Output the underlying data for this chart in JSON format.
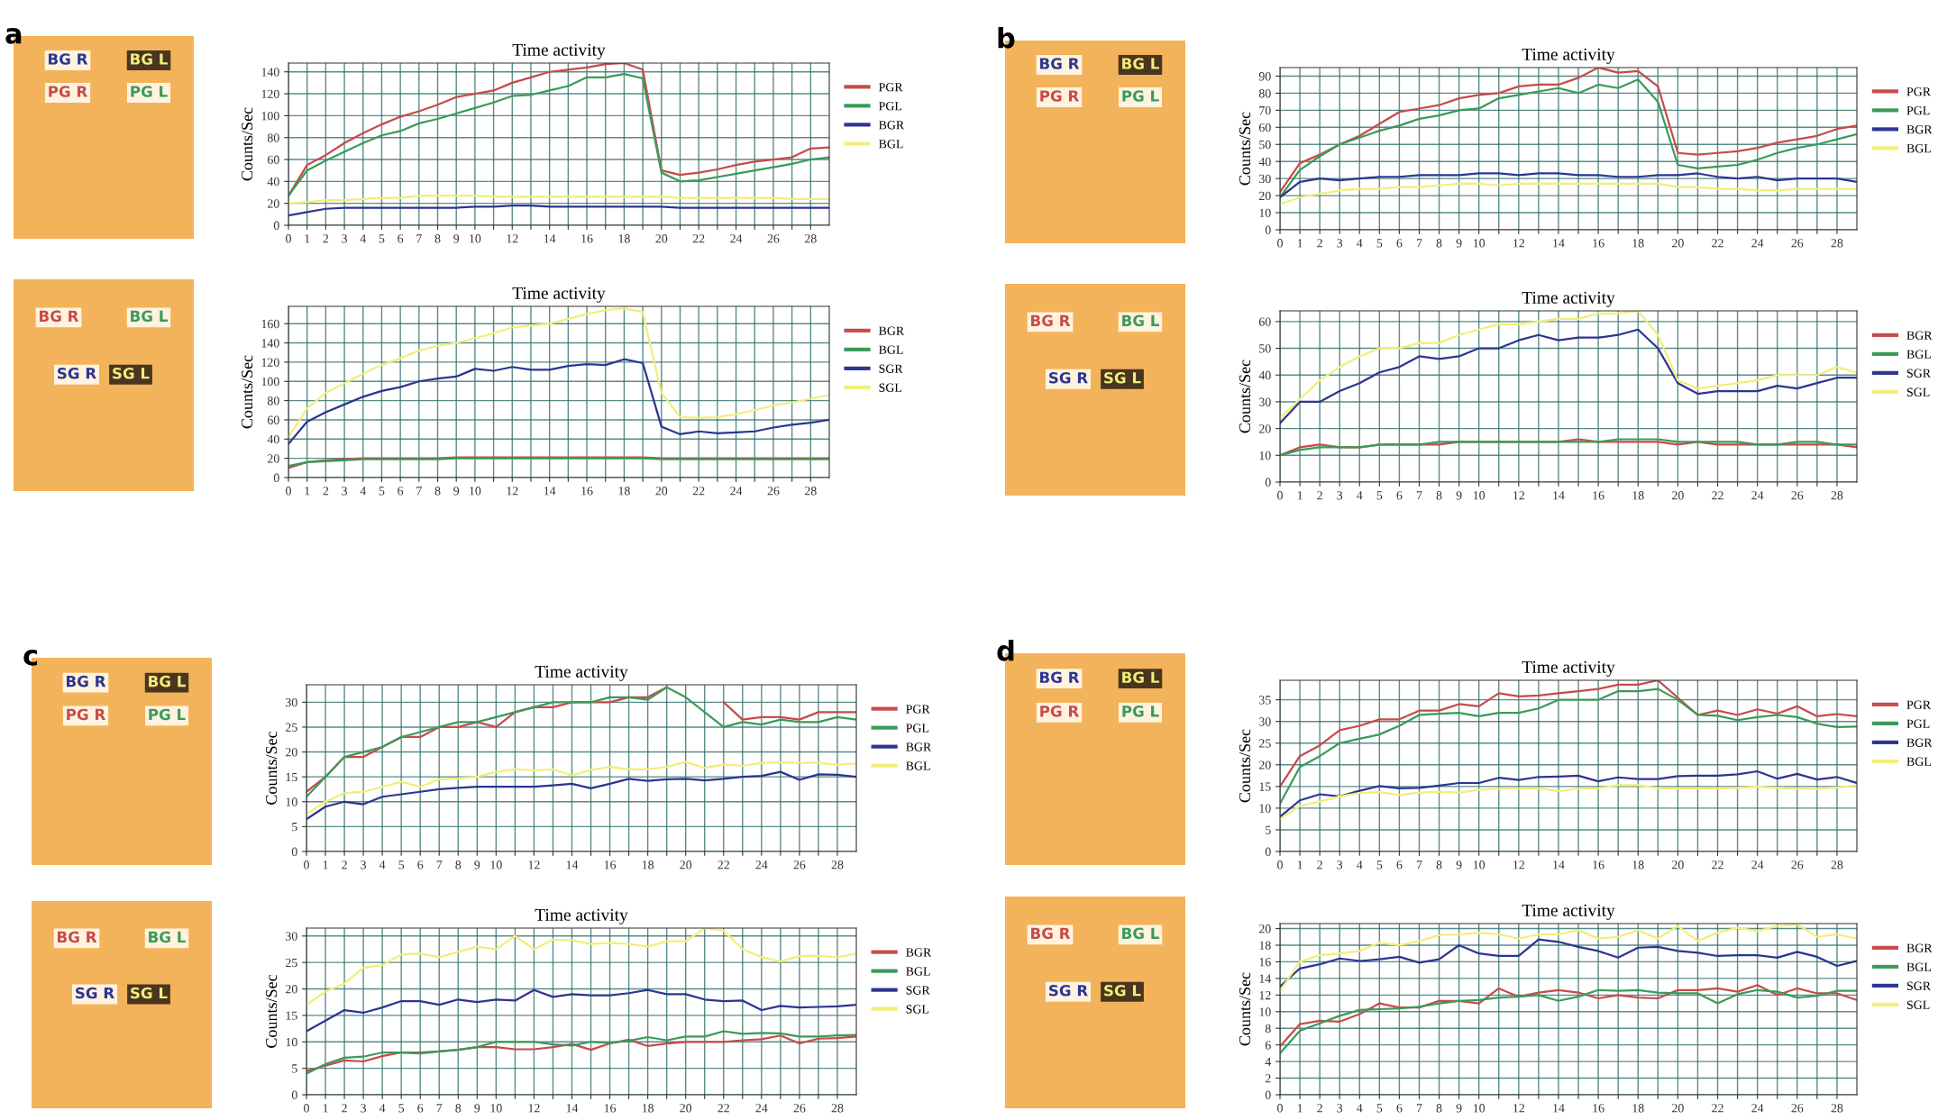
{
  "chart_data": [
    {
      "type": "line",
      "title": "Time activity",
      "ylabel": "Counts/Sec",
      "annotations": [
        "a",
        "PG R",
        "PG L",
        "BG R",
        "BG L"
      ],
      "x": [
        0,
        1,
        2,
        3,
        4,
        5,
        6,
        7,
        8,
        9,
        10,
        11,
        12,
        13,
        14,
        15,
        16,
        17,
        18,
        19,
        20,
        21,
        22,
        23,
        24,
        25,
        26,
        27,
        28,
        29
      ],
      "xlim": [
        0,
        29
      ],
      "xticks": [
        0,
        1,
        2,
        3,
        4,
        5,
        6,
        7,
        8,
        9,
        10,
        {
          "value": 11,
          "label": null
        },
        12,
        {
          "value": 13,
          "label": null
        },
        14,
        {
          "value": 15,
          "label": null
        },
        16,
        {
          "value": 17,
          "label": null
        },
        18,
        {
          "value": 19,
          "label": null
        },
        20,
        {
          "value": 21,
          "label": null
        },
        22,
        {
          "value": 23,
          "label": null
        },
        24,
        {
          "value": 25,
          "label": null
        },
        26,
        {
          "value": 27,
          "label": null
        },
        28
      ],
      "ylim": [
        0,
        148
      ],
      "yticks": [
        0,
        20,
        40,
        60,
        80,
        100,
        120,
        140
      ],
      "grid": true,
      "legend": "right",
      "series": [
        {
          "name": "PGR",
          "color": "#c84a4a",
          "values": [
            27,
            55,
            64,
            75,
            84,
            92,
            99,
            104,
            110,
            117,
            120,
            123,
            130,
            135,
            140,
            142,
            144,
            147,
            148,
            142,
            50,
            46,
            48,
            51,
            55,
            58,
            60,
            62,
            70,
            71
          ]
        },
        {
          "name": "PGL",
          "color": "#3a9a5a",
          "values": [
            27,
            50,
            59,
            67,
            75,
            82,
            86,
            93,
            97,
            102,
            107,
            112,
            118,
            119,
            123,
            127,
            135,
            135,
            138,
            134,
            48,
            40,
            41,
            44,
            47,
            50,
            53,
            56,
            60,
            62
          ]
        },
        {
          "name": "BGR",
          "color": "#2c3590",
          "values": [
            9,
            12,
            15,
            16,
            16,
            16,
            16,
            16,
            16,
            16,
            17,
            17,
            18,
            18,
            17,
            17,
            17,
            17,
            17,
            17,
            17,
            16,
            16,
            16,
            16,
            16,
            16,
            16,
            16,
            16
          ]
        },
        {
          "name": "BGL",
          "color": "#f2ee7a",
          "values": [
            20,
            21,
            23,
            23,
            24,
            25,
            25,
            27,
            27,
            27,
            27,
            26,
            26,
            26,
            26,
            26,
            26,
            26,
            26,
            26,
            26,
            25,
            25,
            25,
            25,
            25,
            25,
            24,
            24,
            24
          ]
        }
      ]
    },
    {
      "type": "line",
      "title": "Time activity",
      "ylabel": "Counts/Sec",
      "annotations": [
        "BG R",
        "BG L",
        "SG R",
        "SG L"
      ],
      "x": [
        0,
        1,
        2,
        3,
        4,
        5,
        6,
        7,
        8,
        9,
        10,
        11,
        12,
        13,
        14,
        15,
        16,
        17,
        18,
        19,
        20,
        21,
        22,
        23,
        24,
        25,
        26,
        27,
        28,
        29
      ],
      "xlim": [
        0,
        29
      ],
      "xticks": [
        0,
        1,
        2,
        3,
        4,
        5,
        6,
        7,
        8,
        9,
        10,
        {
          "value": 11,
          "label": null
        },
        12,
        {
          "value": 13,
          "label": null
        },
        14,
        {
          "value": 15,
          "label": null
        },
        16,
        {
          "value": 17,
          "label": null
        },
        18,
        {
          "value": 19,
          "label": null
        },
        20,
        {
          "value": 21,
          "label": null
        },
        22,
        {
          "value": 23,
          "label": null
        },
        24,
        {
          "value": 25,
          "label": null
        },
        26,
        {
          "value": 27,
          "label": null
        },
        28
      ],
      "ylim": [
        0,
        178
      ],
      "yticks": [
        0,
        20,
        40,
        60,
        80,
        100,
        120,
        140,
        160
      ],
      "grid": true,
      "legend": "right",
      "series": [
        {
          "name": "BGR",
          "color": "#c84a4a",
          "values": [
            10,
            16,
            18,
            19,
            20,
            20,
            20,
            20,
            20,
            21,
            21,
            21,
            21,
            21,
            21,
            21,
            21,
            21,
            21,
            21,
            20,
            20,
            20,
            20,
            20,
            20,
            20,
            20,
            20,
            20
          ]
        },
        {
          "name": "BGL",
          "color": "#3a9a5a",
          "values": [
            12,
            16,
            17,
            18,
            19,
            19,
            19,
            19,
            19,
            20,
            20,
            20,
            20,
            20,
            20,
            20,
            20,
            20,
            20,
            20,
            19,
            19,
            19,
            19,
            19,
            19,
            19,
            19,
            19,
            19
          ]
        },
        {
          "name": "SGR",
          "color": "#2c3590",
          "values": [
            35,
            58,
            68,
            76,
            84,
            90,
            94,
            100,
            103,
            105,
            113,
            111,
            115,
            112,
            112,
            116,
            118,
            117,
            123,
            119,
            53,
            45,
            48,
            46,
            47,
            48,
            52,
            55,
            57,
            60
          ]
        },
        {
          "name": "SGL",
          "color": "#f2ee7a",
          "values": [
            42,
            72,
            88,
            98,
            108,
            117,
            124,
            132,
            137,
            140,
            145,
            150,
            156,
            158,
            160,
            165,
            170,
            174,
            176,
            172,
            88,
            63,
            62,
            63,
            66,
            70,
            75,
            78,
            82,
            86
          ]
        }
      ]
    },
    {
      "type": "line",
      "title": "Time activity",
      "ylabel": "Counts/Sec",
      "annotations": [
        "b",
        "PG R",
        "PG L",
        "BG R",
        "BG L"
      ],
      "x": [
        0,
        1,
        2,
        3,
        4,
        5,
        6,
        7,
        8,
        9,
        10,
        11,
        12,
        13,
        14,
        15,
        16,
        17,
        18,
        19,
        20,
        21,
        22,
        23,
        24,
        25,
        26,
        27,
        28,
        29
      ],
      "xlim": [
        0,
        29
      ],
      "xticks": [
        0,
        1,
        2,
        3,
        4,
        5,
        6,
        7,
        8,
        9,
        10,
        {
          "value": 11,
          "label": null
        },
        12,
        {
          "value": 13,
          "label": null
        },
        14,
        {
          "value": 15,
          "label": null
        },
        16,
        {
          "value": 17,
          "label": null
        },
        18,
        {
          "value": 19,
          "label": null
        },
        20,
        {
          "value": 21,
          "label": null
        },
        22,
        {
          "value": 23,
          "label": null
        },
        24,
        {
          "value": 25,
          "label": null
        },
        26,
        {
          "value": 27,
          "label": null
        },
        28
      ],
      "ylim": [
        0,
        95
      ],
      "yticks": [
        0,
        10,
        20,
        30,
        40,
        50,
        60,
        70,
        80,
        90
      ],
      "grid": true,
      "legend": "right",
      "series": [
        {
          "name": "PGR",
          "color": "#c84a4a",
          "values": [
            22,
            39,
            44,
            50,
            55,
            62,
            69,
            71,
            73,
            77,
            79,
            80,
            84,
            85,
            85,
            89,
            95,
            92,
            93,
            84,
            45,
            44,
            45,
            46,
            48,
            51,
            53,
            55,
            59,
            61
          ]
        },
        {
          "name": "PGL",
          "color": "#3a9a5a",
          "values": [
            19,
            35,
            43,
            50,
            54,
            58,
            61,
            65,
            67,
            70,
            71,
            77,
            79,
            81,
            83,
            80,
            85,
            83,
            88,
            75,
            38,
            36,
            37,
            38,
            41,
            45,
            48,
            50,
            53,
            56
          ]
        },
        {
          "name": "BGR",
          "color": "#2c3590",
          "values": [
            19,
            28,
            30,
            29,
            30,
            31,
            31,
            32,
            32,
            32,
            33,
            33,
            32,
            33,
            33,
            32,
            32,
            31,
            31,
            32,
            32,
            33,
            31,
            30,
            31,
            29,
            30,
            30,
            30,
            28
          ]
        },
        {
          "name": "BGL",
          "color": "#f2ee7a",
          "values": [
            15,
            19,
            21,
            23,
            24,
            24,
            25,
            25,
            26,
            27,
            27,
            26,
            27,
            27,
            27,
            27,
            27,
            27,
            27,
            27,
            25,
            25,
            24,
            24,
            23,
            23,
            24,
            24,
            24,
            24
          ]
        }
      ]
    },
    {
      "type": "line",
      "title": "Time activity",
      "ylabel": "Counts/Sec",
      "annotations": [
        "BG R",
        "BG L",
        "SG R",
        "SG L"
      ],
      "x": [
        0,
        1,
        2,
        3,
        4,
        5,
        6,
        7,
        8,
        9,
        10,
        11,
        12,
        13,
        14,
        15,
        16,
        17,
        18,
        19,
        20,
        21,
        22,
        23,
        24,
        25,
        26,
        27,
        28,
        29
      ],
      "xlim": [
        0,
        29
      ],
      "xticks": [
        0,
        1,
        2,
        3,
        4,
        5,
        6,
        7,
        8,
        9,
        10,
        {
          "value": 11,
          "label": null
        },
        12,
        {
          "value": 13,
          "label": null
        },
        14,
        {
          "value": 15,
          "label": null
        },
        16,
        {
          "value": 17,
          "label": null
        },
        18,
        {
          "value": 19,
          "label": null
        },
        20,
        {
          "value": 21,
          "label": null
        },
        22,
        {
          "value": 23,
          "label": null
        },
        24,
        {
          "value": 25,
          "label": null
        },
        26,
        {
          "value": 27,
          "label": null
        },
        28
      ],
      "ylim": [
        0,
        64
      ],
      "yticks": [
        0,
        10,
        20,
        30,
        40,
        50,
        60
      ],
      "grid": true,
      "legend": "right",
      "series": [
        {
          "name": "BGR",
          "color": "#c84a4a",
          "values": [
            10,
            13,
            14,
            13,
            13,
            14,
            14,
            14,
            14,
            15,
            15,
            15,
            15,
            15,
            15,
            16,
            15,
            15,
            15,
            15,
            14,
            15,
            14,
            14,
            14,
            14,
            14,
            14,
            14,
            13
          ]
        },
        {
          "name": "BGL",
          "color": "#3a9a5a",
          "values": [
            10,
            12,
            13,
            13,
            13,
            14,
            14,
            14,
            15,
            15,
            15,
            15,
            15,
            15,
            15,
            15,
            15,
            16,
            16,
            16,
            15,
            15,
            15,
            15,
            14,
            14,
            15,
            15,
            14,
            14
          ]
        },
        {
          "name": "SGR",
          "color": "#2c3590",
          "values": [
            22,
            30,
            30,
            34,
            37,
            41,
            43,
            47,
            46,
            47,
            50,
            50,
            53,
            55,
            53,
            54,
            54,
            55,
            57,
            50,
            37,
            33,
            34,
            34,
            34,
            36,
            35,
            37,
            39,
            39
          ]
        },
        {
          "name": "SGL",
          "color": "#f2ee7a",
          "values": [
            24,
            31,
            38,
            43,
            47,
            50,
            50,
            52,
            52,
            55,
            57,
            59,
            59,
            60,
            61,
            61,
            63,
            63,
            64,
            55,
            38,
            35,
            36,
            37,
            38,
            40,
            40,
            40,
            43,
            41
          ]
        }
      ]
    },
    {
      "type": "line",
      "title": "Time activity",
      "ylabel": "Counts/Sec",
      "annotations": [
        "c",
        "PG R",
        "PG L",
        "BG R",
        "BG L"
      ],
      "x": [
        0,
        1,
        2,
        3,
        4,
        5,
        6,
        7,
        8,
        9,
        10,
        11,
        12,
        13,
        14,
        15,
        16,
        17,
        18,
        19,
        20,
        21,
        22,
        23,
        24,
        25,
        26,
        27,
        28,
        29
      ],
      "xlim": [
        0,
        29
      ],
      "xticks": [
        0,
        1,
        2,
        3,
        4,
        5,
        6,
        7,
        8,
        9,
        10,
        {
          "value": 11,
          "label": null
        },
        12,
        {
          "value": 13,
          "label": null
        },
        14,
        {
          "value": 15,
          "label": null
        },
        16,
        {
          "value": 17,
          "label": null
        },
        18,
        {
          "value": 19,
          "label": null
        },
        20,
        {
          "value": 21,
          "label": null
        },
        22,
        {
          "value": 23,
          "label": null
        },
        24,
        {
          "value": 25,
          "label": null
        },
        26,
        {
          "value": 27,
          "label": null
        },
        28
      ],
      "ylim": [
        0,
        33.5
      ],
      "yticks": [
        0,
        5,
        10,
        15,
        20,
        25,
        30
      ],
      "grid": true,
      "legend": "right",
      "series": [
        {
          "name": "PGR",
          "color": "#c84a4a",
          "values": [
            12,
            15,
            19,
            19,
            21,
            23,
            23,
            25,
            25,
            26,
            25,
            28,
            29,
            29,
            30,
            30,
            30,
            31,
            31,
            33,
            null,
            null,
            30,
            26.5,
            27,
            27,
            26.5,
            28,
            28,
            28
          ]
        },
        {
          "name": "PGL",
          "color": "#3a9a5a",
          "values": [
            11,
            15,
            19,
            20,
            21,
            23,
            24,
            25,
            26,
            26,
            27,
            28,
            29,
            30,
            30,
            30,
            31,
            31,
            30.5,
            33,
            31,
            28,
            25,
            26,
            25.5,
            26.5,
            26,
            26,
            27,
            26.5
          ]
        },
        {
          "name": "BGR",
          "color": "#2c3590",
          "values": [
            6.5,
            9,
            10,
            9.5,
            11,
            11.5,
            12,
            12.5,
            12.8,
            13,
            13,
            13,
            13,
            13.3,
            13.6,
            12.7,
            13.6,
            14.6,
            14.2,
            14.5,
            14.6,
            14.3,
            14.6,
            15,
            15.2,
            16,
            14.4,
            15.5,
            15.4,
            15
          ]
        },
        {
          "name": "BGL",
          "color": "#f2ee7a",
          "values": [
            7.5,
            10,
            11.7,
            12,
            13,
            14,
            13,
            14.5,
            14.7,
            15,
            16,
            16.5,
            16.3,
            16.5,
            15.3,
            16.4,
            17,
            16.5,
            16.5,
            17,
            18,
            16.8,
            17.5,
            17.2,
            17.8,
            17.9,
            17.8,
            17.8,
            17.4,
            17.7
          ]
        }
      ]
    },
    {
      "type": "line",
      "title": "Time activity",
      "ylabel": "Counts/Sec",
      "annotations": [
        "BG R",
        "BG L",
        "SG R",
        "SG L"
      ],
      "x": [
        0,
        1,
        2,
        3,
        4,
        5,
        6,
        7,
        8,
        9,
        10,
        11,
        12,
        13,
        14,
        15,
        16,
        17,
        18,
        19,
        20,
        21,
        22,
        23,
        24,
        25,
        26,
        27,
        28,
        29
      ],
      "xlim": [
        0,
        29
      ],
      "xticks": [
        0,
        1,
        2,
        3,
        4,
        5,
        6,
        7,
        8,
        9,
        10,
        {
          "value": 11,
          "label": null
        },
        12,
        {
          "value": 13,
          "label": null
        },
        14,
        {
          "value": 15,
          "label": null
        },
        16,
        {
          "value": 17,
          "label": null
        },
        18,
        {
          "value": 19,
          "label": null
        },
        20,
        {
          "value": 21,
          "label": null
        },
        22,
        {
          "value": 23,
          "label": null
        },
        24,
        {
          "value": 25,
          "label": null
        },
        26,
        {
          "value": 27,
          "label": null
        },
        28
      ],
      "ylim": [
        0,
        31.5
      ],
      "yticks": [
        0,
        5,
        10,
        15,
        20,
        25,
        30
      ],
      "grid": true,
      "legend": "right",
      "series": [
        {
          "name": "BGR",
          "color": "#c84a4a",
          "values": [
            4.5,
            5.5,
            6.5,
            6.3,
            7.3,
            8,
            8,
            8.2,
            8.5,
            9,
            9,
            8.6,
            8.6,
            9,
            9.6,
            8.5,
            9.7,
            10.4,
            9.2,
            9.7,
            10,
            10,
            10,
            10.3,
            10.5,
            11.2,
            9.7,
            10.6,
            10.7,
            11
          ]
        },
        {
          "name": "BGL",
          "color": "#3a9a5a",
          "values": [
            4,
            5.8,
            7,
            7.2,
            8,
            8,
            7.8,
            8.2,
            8.5,
            9,
            10,
            10,
            10,
            9.5,
            9.3,
            10,
            9.8,
            10.2,
            10.9,
            10.3,
            11,
            11,
            12,
            11.5,
            11.7,
            11.6,
            11,
            11,
            11.2,
            11.3
          ]
        },
        {
          "name": "SGR",
          "color": "#2c3590",
          "values": [
            12,
            14,
            16,
            15.5,
            16.5,
            17.7,
            17.7,
            17,
            18,
            17.5,
            18,
            17.8,
            19.8,
            18.5,
            19,
            18.8,
            18.8,
            19.2,
            19.8,
            19,
            19,
            18,
            17.7,
            17.8,
            16,
            16.8,
            16.5,
            16.6,
            16.7,
            17
          ]
        },
        {
          "name": "SGL",
          "color": "#f2ee7a",
          "values": [
            17,
            19.5,
            21,
            24,
            24.5,
            26.5,
            26.7,
            26,
            27,
            28,
            27.5,
            30,
            27.5,
            29.3,
            29.2,
            28.5,
            28.7,
            28.5,
            28,
            29,
            29,
            31.5,
            31,
            27.5,
            26,
            25.2,
            26.2,
            26.3,
            26,
            26.7
          ]
        }
      ]
    },
    {
      "type": "line",
      "title": "Time activity",
      "ylabel": "Counts/Sec",
      "annotations": [
        "d",
        "PG R",
        "PG L",
        "BG R",
        "BG L"
      ],
      "x": [
        0,
        1,
        2,
        3,
        4,
        5,
        6,
        7,
        8,
        9,
        10,
        11,
        12,
        13,
        14,
        15,
        16,
        17,
        18,
        19,
        20,
        21,
        22,
        23,
        24,
        25,
        26,
        27,
        28,
        29
      ],
      "xlim": [
        0,
        29
      ],
      "xticks": [
        0,
        1,
        2,
        3,
        4,
        5,
        6,
        7,
        8,
        9,
        10,
        {
          "value": 11,
          "label": null
        },
        12,
        {
          "value": 13,
          "label": null
        },
        14,
        {
          "value": 15,
          "label": null
        },
        16,
        {
          "value": 17,
          "label": null
        },
        18,
        {
          "value": 19,
          "label": null
        },
        20,
        {
          "value": 21,
          "label": null
        },
        22,
        {
          "value": 23,
          "label": null
        },
        24,
        {
          "value": 25,
          "label": null
        },
        26,
        {
          "value": 27,
          "label": null
        },
        28
      ],
      "ylim": [
        0,
        39.5
      ],
      "yticks": [
        0,
        5,
        10,
        15,
        20,
        25,
        30,
        35
      ],
      "grid": true,
      "legend": "right",
      "series": [
        {
          "name": "PGR",
          "color": "#c84a4a",
          "values": [
            15,
            22,
            24.5,
            28,
            29,
            30.5,
            30.5,
            32.5,
            32.5,
            34,
            33.5,
            36.5,
            35.8,
            36,
            36.5,
            37,
            37.5,
            38.5,
            38.5,
            39.5,
            35.5,
            31.5,
            32.5,
            31.5,
            32.8,
            31.8,
            33.5,
            31.2,
            31.7,
            31.2
          ]
        },
        {
          "name": "PGL",
          "color": "#3a9a5a",
          "values": [
            11,
            19.5,
            22,
            25,
            26,
            27,
            29,
            31.5,
            31.8,
            32,
            31.2,
            32,
            32,
            33,
            35,
            35,
            35,
            37,
            37,
            37.5,
            35,
            31.5,
            31.3,
            30.3,
            31,
            31.5,
            31,
            29.5,
            28.7,
            28.8
          ]
        },
        {
          "name": "BGR",
          "color": "#2c3590",
          "values": [
            8,
            11.8,
            13.2,
            12.7,
            14,
            15.1,
            14.6,
            14.7,
            15.2,
            15.8,
            15.8,
            17,
            16.5,
            17.2,
            17.3,
            17.5,
            16.2,
            17.1,
            16.7,
            16.7,
            17.4,
            17.5,
            17.5,
            17.8,
            18.5,
            16.8,
            17.9,
            16.6,
            17.2,
            15.8
          ]
        },
        {
          "name": "BGL",
          "color": "#f2ee7a",
          "values": [
            7.5,
            10.5,
            11.5,
            12.7,
            13.5,
            13.7,
            13,
            13.6,
            13.8,
            13.6,
            14.2,
            14.5,
            14.5,
            14.6,
            13.9,
            14.5,
            14.6,
            15.3,
            15.3,
            14.6,
            14.6,
            14.6,
            14.6,
            14.7,
            15,
            14.7,
            14.5,
            14.4,
            14.8,
            15.2
          ]
        }
      ]
    },
    {
      "type": "line",
      "title": "Time activity",
      "ylabel": "Counts/Sec",
      "annotations": [
        "BG R",
        "BG L",
        "SG R",
        "SG L"
      ],
      "x": [
        0,
        1,
        2,
        3,
        4,
        5,
        6,
        7,
        8,
        9,
        10,
        11,
        12,
        13,
        14,
        15,
        16,
        17,
        18,
        19,
        20,
        21,
        22,
        23,
        24,
        25,
        26,
        27,
        28,
        29
      ],
      "xlim": [
        0,
        29
      ],
      "xticks": [
        0,
        1,
        2,
        3,
        4,
        5,
        6,
        7,
        8,
        9,
        10,
        {
          "value": 11,
          "label": null
        },
        12,
        {
          "value": 13,
          "label": null
        },
        14,
        {
          "value": 15,
          "label": null
        },
        16,
        {
          "value": 17,
          "label": null
        },
        18,
        {
          "value": 19,
          "label": null
        },
        20,
        {
          "value": 21,
          "label": null
        },
        22,
        {
          "value": 23,
          "label": null
        },
        24,
        {
          "value": 25,
          "label": null
        },
        26,
        {
          "value": 27,
          "label": null
        },
        28
      ],
      "ylim": [
        0,
        20.6
      ],
      "yticks": [
        0,
        2,
        4,
        6,
        8,
        10,
        12,
        14,
        16,
        18,
        20
      ],
      "grid": true,
      "legend": "right",
      "series": [
        {
          "name": "BGR",
          "color": "#c84a4a",
          "values": [
            5.8,
            8.5,
            8.9,
            8.8,
            9.7,
            11,
            10.5,
            10.5,
            11.3,
            11.3,
            11,
            12.8,
            11.8,
            12.3,
            12.6,
            12.3,
            11.6,
            12,
            11.7,
            11.6,
            12.6,
            12.6,
            12.8,
            12.4,
            13.2,
            12,
            12.8,
            12.2,
            12.2,
            11.4
          ]
        },
        {
          "name": "BGL",
          "color": "#3a9a5a",
          "values": [
            5,
            7.7,
            8.6,
            9.5,
            10.2,
            10.3,
            10.4,
            10.6,
            11,
            11.3,
            11.4,
            11.7,
            11.8,
            12,
            11.3,
            11.8,
            12.6,
            12.5,
            12.6,
            12.3,
            12.2,
            12.2,
            11,
            12.1,
            12.6,
            12.4,
            11.7,
            11.9,
            12.5,
            12.5
          ]
        },
        {
          "name": "SGR",
          "color": "#2c3590",
          "values": [
            13,
            15.2,
            15.7,
            16.4,
            16.1,
            16.3,
            16.6,
            15.9,
            16.3,
            18,
            17,
            16.7,
            16.7,
            18.7,
            18.4,
            17.8,
            17.3,
            16.5,
            17.7,
            17.8,
            17.3,
            17.1,
            16.7,
            16.8,
            16.8,
            16.5,
            17.2,
            16.6,
            15.5,
            16.1
          ]
        },
        {
          "name": "SGL",
          "color": "#f2ee7a",
          "values": [
            12.5,
            16,
            16.8,
            17,
            17.3,
            18.3,
            18,
            18.5,
            19.2,
            19.3,
            19.5,
            19.3,
            18.8,
            19.3,
            19.3,
            19.8,
            18.8,
            19,
            19.8,
            18.8,
            20.3,
            18.5,
            19.5,
            20.1,
            19.7,
            20.3,
            20.5,
            19,
            19.3,
            18.8
          ]
        }
      ]
    }
  ]
}
